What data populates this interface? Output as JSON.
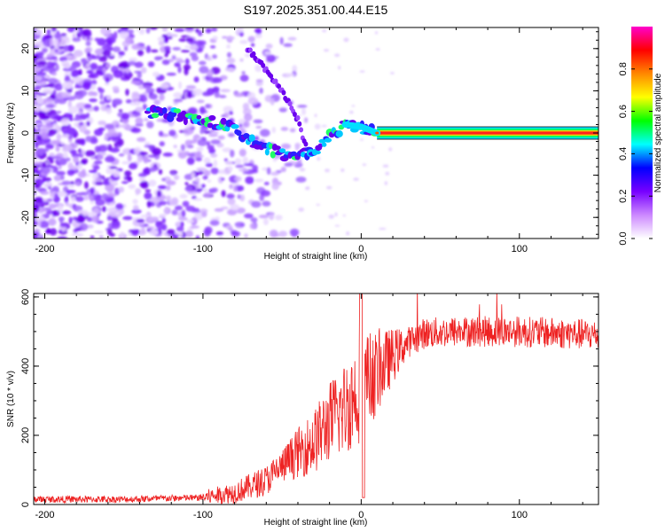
{
  "title": "S197.2025.351.00.44.E15",
  "chart_data": [
    {
      "type": "heatmap",
      "name": "spectrogram",
      "xlabel": "Height of straight line (km)",
      "ylabel": "Frequency (Hz)",
      "xlim": [
        -207,
        150
      ],
      "ylim": [
        -25,
        25
      ],
      "x_ticks": [
        "-200",
        "-100",
        "0",
        "100"
      ],
      "x_tick_values": [
        -200,
        -100,
        0,
        100
      ],
      "y_ticks": [
        "20",
        "10",
        "0",
        "-10",
        "-20"
      ],
      "y_tick_values": [
        20,
        10,
        0,
        -10,
        -20
      ],
      "colorbar": {
        "label": "Normalized spectral amplitude",
        "ticks": [
          "0.0",
          "0.2",
          "0.4",
          "0.6",
          "0.8"
        ],
        "tick_values": [
          0.0,
          0.2,
          0.4,
          0.6,
          0.8
        ],
        "range": [
          0,
          1
        ],
        "colors": [
          "#ffffff",
          "#cc88ff",
          "#7700ff",
          "#0000ff",
          "#00ffff",
          "#00ff00",
          "#ffff00",
          "#ff8800",
          "#ff0000",
          "#ff00cc"
        ]
      },
      "ridge": [
        {
          "x": -125,
          "y": 5
        },
        {
          "x": -100,
          "y": 3
        },
        {
          "x": -80,
          "y": 1
        },
        {
          "x": -70,
          "y": -2
        },
        {
          "x": -60,
          "y": -4
        },
        {
          "x": -50,
          "y": -5
        },
        {
          "x": -40,
          "y": -6
        },
        {
          "x": -30,
          "y": -4
        },
        {
          "x": -20,
          "y": -1
        },
        {
          "x": -10,
          "y": 2
        },
        {
          "x": 0,
          "y": 1.5
        },
        {
          "x": 10,
          "y": 0
        },
        {
          "x": 150,
          "y": 0
        }
      ],
      "arc": [
        {
          "x": -72,
          "y": 20
        },
        {
          "x": -60,
          "y": 15
        },
        {
          "x": -50,
          "y": 10
        },
        {
          "x": -40,
          "y": 3
        },
        {
          "x": -35,
          "y": -3
        }
      ]
    },
    {
      "type": "line",
      "name": "snr",
      "xlabel": "Height of straight line (km)",
      "ylabel": "SNR (10 * v/v)",
      "xlim": [
        -207,
        150
      ],
      "ylim": [
        0,
        610
      ],
      "x_ticks": [
        "-200",
        "-100",
        "0",
        "100"
      ],
      "x_tick_values": [
        -200,
        -100,
        0,
        100
      ],
      "y_ticks": [
        "600",
        "400",
        "200",
        "0"
      ],
      "y_tick_values": [
        600,
        400,
        200,
        0
      ],
      "line_color": "#ee2222",
      "trend": [
        {
          "x": -207,
          "y": 15
        },
        {
          "x": -150,
          "y": 15
        },
        {
          "x": -100,
          "y": 20
        },
        {
          "x": -80,
          "y": 35
        },
        {
          "x": -60,
          "y": 70
        },
        {
          "x": -50,
          "y": 110
        },
        {
          "x": -40,
          "y": 150
        },
        {
          "x": -30,
          "y": 180
        },
        {
          "x": -20,
          "y": 240
        },
        {
          "x": -10,
          "y": 280
        },
        {
          "x": 0,
          "y": 340
        },
        {
          "x": 10,
          "y": 380
        },
        {
          "x": 20,
          "y": 430
        },
        {
          "x": 30,
          "y": 470
        },
        {
          "x": 40,
          "y": 495
        },
        {
          "x": 60,
          "y": 500
        },
        {
          "x": 100,
          "y": 500
        },
        {
          "x": 150,
          "y": 490
        }
      ]
    }
  ]
}
